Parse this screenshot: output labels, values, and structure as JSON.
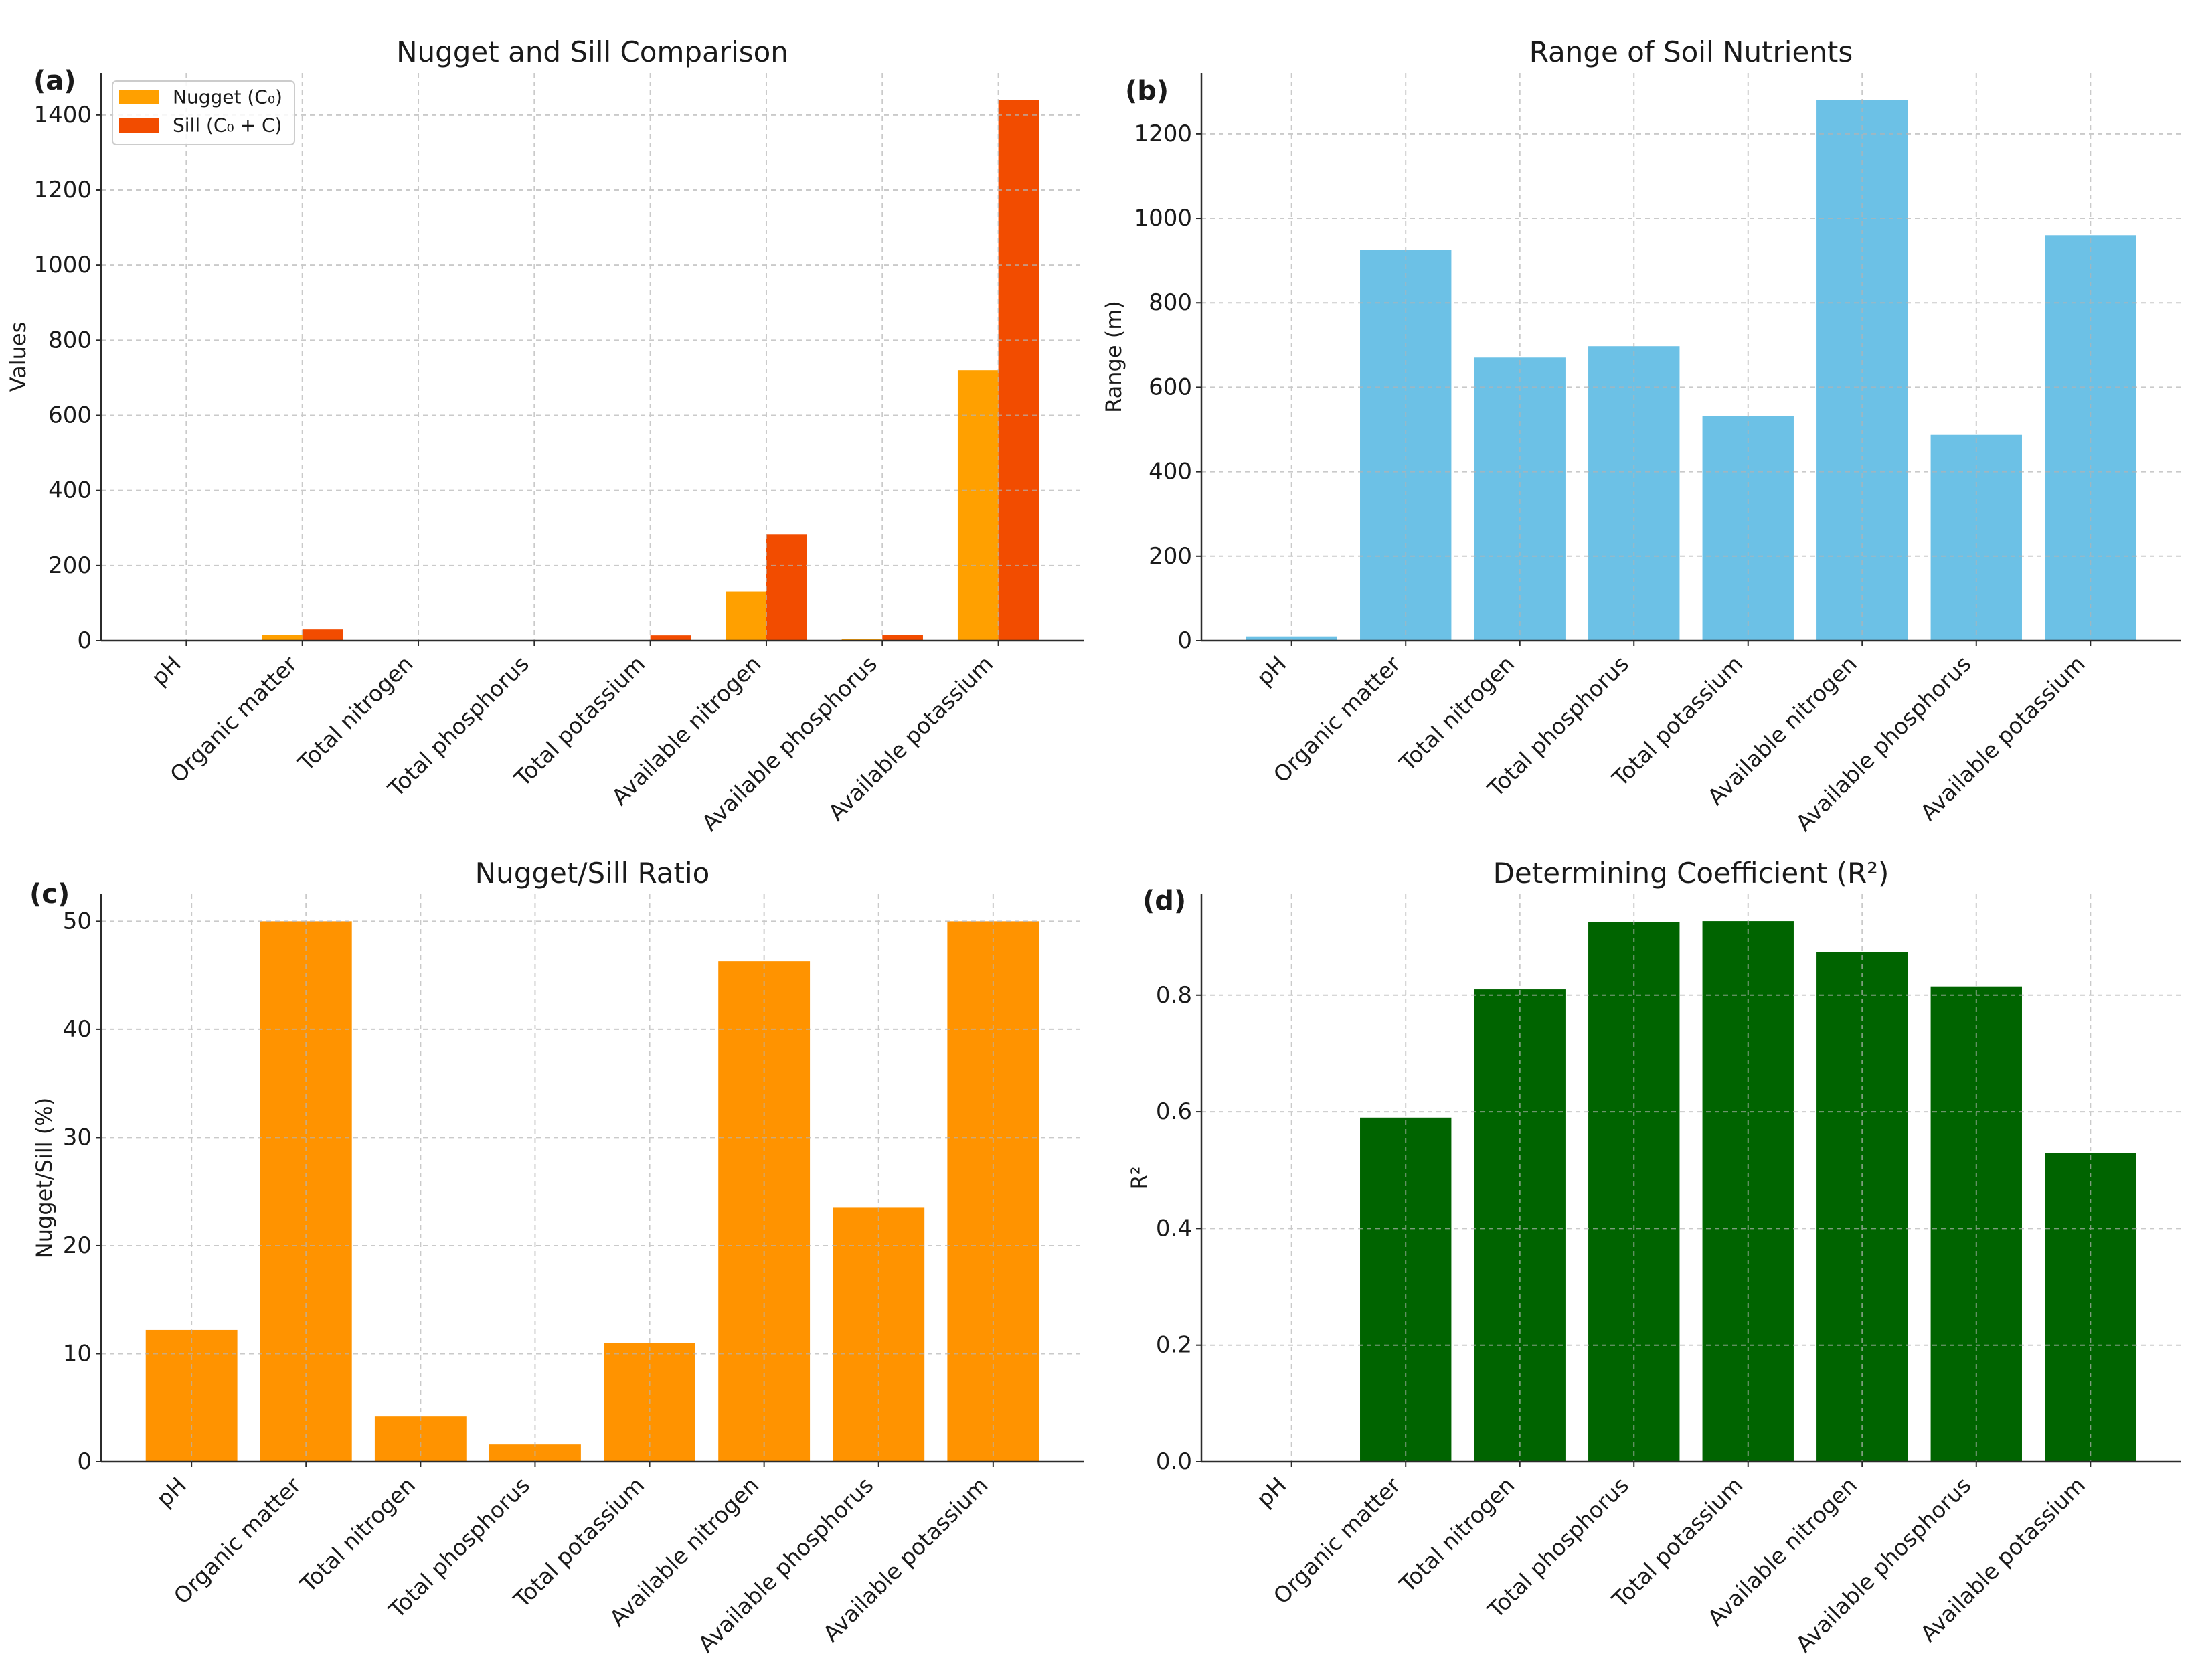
{
  "chart_data": [
    {
      "panel_label": "(a)",
      "type": "bar",
      "title": "Nugget and Sill Comparison",
      "xlabel": "",
      "ylabel": "Values",
      "categories": [
        "pH",
        "Organic matter",
        "Total nitrogen",
        "Total phosphorus",
        "Total potassium",
        "Available nitrogen",
        "Available phosphorus",
        "Available potassium"
      ],
      "series": [
        {
          "name": "Nugget (C₀)",
          "color": "#FFA000",
          "values": [
            0.03,
            15,
            0.001,
            0.001,
            1.5,
            131,
            3.5,
            720
          ]
        },
        {
          "name": "Sill (C₀ + C)",
          "color": "#F24C00",
          "values": [
            0.25,
            30,
            0.025,
            0.06,
            14,
            283,
            15,
            1440
          ]
        }
      ],
      "ylim": [
        0,
        1512
      ],
      "yticks": [
        0,
        200,
        400,
        600,
        800,
        1000,
        1200,
        1400
      ],
      "ytick_labels": [
        "0",
        "200",
        "400",
        "600",
        "800",
        "1000",
        "1200",
        "1400"
      ],
      "legend": "upper-left",
      "grid": true
    },
    {
      "panel_label": "(b)",
      "type": "bar",
      "title": "Range of Soil Nutrients",
      "xlabel": "",
      "ylabel": "Range (m)",
      "categories": [
        "pH",
        "Organic matter",
        "Total nitrogen",
        "Total phosphorus",
        "Total potassium",
        "Available nitrogen",
        "Available phosphorus",
        "Available potassium"
      ],
      "series": [
        {
          "name": "Range",
          "color": "#6CC1E6",
          "values": [
            10,
            925,
            670,
            697,
            532,
            1280,
            487,
            960
          ]
        }
      ],
      "ylim": [
        0,
        1344
      ],
      "yticks": [
        0,
        200,
        400,
        600,
        800,
        1000,
        1200
      ],
      "ytick_labels": [
        "0",
        "200",
        "400",
        "600",
        "800",
        "1000",
        "1200"
      ],
      "grid": true
    },
    {
      "panel_label": "(c)",
      "type": "bar",
      "title": "Nugget/Sill Ratio",
      "xlabel": "",
      "ylabel": "Nugget/Sill (%)",
      "categories": [
        "pH",
        "Organic matter",
        "Total nitrogen",
        "Total phosphorus",
        "Total potassium",
        "Available nitrogen",
        "Available phosphorus",
        "Available potassium"
      ],
      "series": [
        {
          "name": "Nugget/Sill",
          "color": "#FF9300",
          "values": [
            12.2,
            50,
            4.2,
            1.6,
            11,
            46.3,
            23.5,
            50
          ]
        }
      ],
      "ylim": [
        0,
        52.5
      ],
      "yticks": [
        0,
        10,
        20,
        30,
        40,
        50
      ],
      "ytick_labels": [
        "0",
        "10",
        "20",
        "30",
        "40",
        "50"
      ],
      "grid": true
    },
    {
      "panel_label": "(d)",
      "type": "bar",
      "title": "Determining Coefficient (R²)",
      "xlabel": "",
      "ylabel": "R²",
      "categories": [
        "pH",
        "Organic matter",
        "Total nitrogen",
        "Total phosphorus",
        "Total potassium",
        "Available nitrogen",
        "Available phosphorus",
        "Available potassium"
      ],
      "series": [
        {
          "name": "R²",
          "color": "#006400",
          "values": [
            0.0,
            0.59,
            0.81,
            0.925,
            0.927,
            0.874,
            0.815,
            0.53
          ]
        }
      ],
      "ylim": [
        0,
        0.973
      ],
      "yticks": [
        0.0,
        0.2,
        0.4,
        0.6,
        0.8
      ],
      "ytick_labels": [
        "0.0",
        "0.2",
        "0.4",
        "0.6",
        "0.8"
      ],
      "grid": true
    }
  ]
}
